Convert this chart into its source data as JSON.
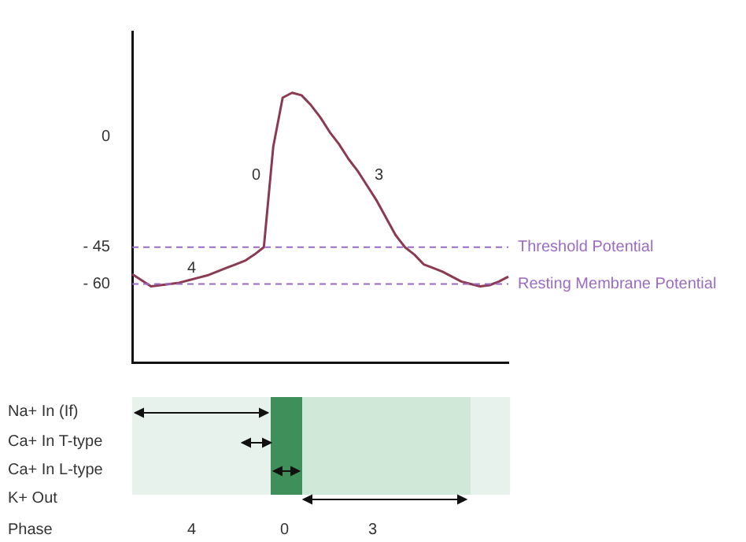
{
  "chart_data": {
    "type": "line",
    "categories": [
      null,
      null,
      null,
      null,
      null,
      null,
      null,
      null,
      null,
      null,
      null,
      null,
      null,
      null,
      null,
      null,
      null,
      null,
      null,
      null,
      null,
      null,
      null,
      null,
      null,
      null,
      null,
      null,
      null,
      null,
      null,
      null,
      null,
      null,
      null,
      null,
      null,
      null,
      null,
      null,
      null
    ],
    "series": [
      {
        "color": "#8b3a52",
        "values": [
          -56,
          -58.5,
          -61,
          -60.5,
          -60,
          -59.5,
          -58.5,
          -57.5,
          -56.5,
          -55,
          -53.5,
          -52,
          -50.5,
          -48,
          -45,
          -4,
          16,
          18,
          17,
          13,
          8,
          2,
          -3,
          -9,
          -14,
          -20,
          -26,
          -33,
          -40,
          -45,
          -48,
          -52,
          -53.5,
          -55,
          -57,
          -59,
          -60,
          -61,
          -60.5,
          -59,
          -57
        ]
      }
    ],
    "ylim": [
      -92,
      43
    ],
    "yticks": [
      0,
      {
        "value": -45,
        "label": "- 45"
      },
      {
        "value": -60,
        "label": "- 60"
      }
    ],
    "tick_labels": "y",
    "grid": false,
    "legend": false,
    "marker": "none",
    "line_style": "solid",
    "ref_lines": [
      {
        "axis": "y",
        "value": -45,
        "label": "Threshold Potential",
        "color": "#9b6bc2",
        "line_style": "dashed"
      },
      {
        "axis": "y",
        "value": -60,
        "label": "Resting Membrane Potential",
        "color": "#9b6bc2",
        "line_style": "dashed"
      }
    ],
    "annotations": [
      "4",
      "0",
      "3",
      "Na+ In (If)",
      "Ca+ In T-type",
      "Ca+ In L-type",
      "K+ Out",
      "Phase",
      "4",
      "0",
      "3"
    ]
  }
}
